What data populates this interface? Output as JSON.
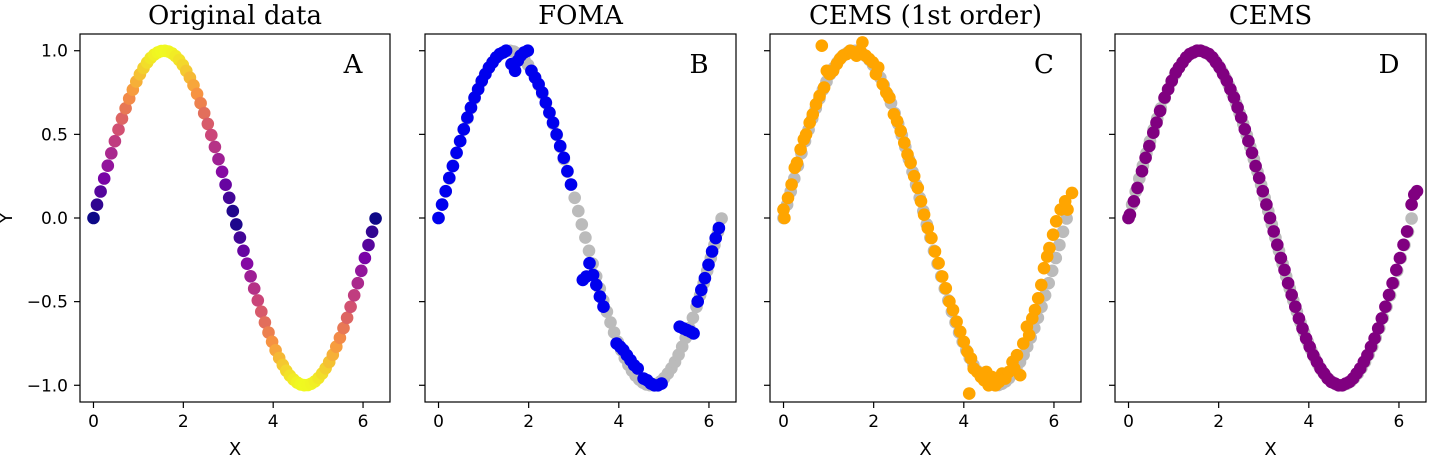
{
  "figure": {
    "panels": [
      {
        "title": "Original data",
        "letter": "A",
        "xlabel": "X",
        "ylabel": "Y",
        "show_y_tick_labels": true
      },
      {
        "title": "FOMA",
        "letter": "B",
        "xlabel": "X",
        "ylabel": "",
        "show_y_tick_labels": false
      },
      {
        "title": "CEMS (1st order)",
        "letter": "C",
        "xlabel": "X",
        "ylabel": "",
        "show_y_tick_labels": false
      },
      {
        "title": "CEMS",
        "letter": "D",
        "xlabel": "X",
        "ylabel": "",
        "show_y_tick_labels": false
      }
    ]
  },
  "chart_data": [
    {
      "type": "scatter",
      "title": "Original data",
      "annotation": "A",
      "xlabel": "X",
      "ylabel": "Y",
      "xlim": [
        -0.3,
        6.6
      ],
      "ylim": [
        -1.1,
        1.1
      ],
      "xticks": [
        0,
        2,
        4,
        6
      ],
      "yticks": [
        -1.0,
        -0.5,
        0.0,
        0.5,
        1.0
      ],
      "ytick_labels": [
        "−1.0",
        "−0.5",
        "0.0",
        "0.5",
        "1.0"
      ],
      "grid": false,
      "series": [
        {
          "color_map": "plasma (color by |y|)",
          "x_range": [
            0,
            6.28
          ],
          "n_points": 80,
          "function": "y = sin(x)"
        }
      ]
    },
    {
      "type": "scatter",
      "title": "FOMA",
      "annotation": "B",
      "xlabel": "X",
      "xlim": [
        -0.3,
        6.6
      ],
      "ylim": [
        -1.1,
        1.1
      ],
      "xticks": [
        0,
        2,
        4,
        6
      ],
      "grid": false,
      "series": [
        {
          "color": "#bbbbbb",
          "x_range": [
            0,
            6.28
          ],
          "n_points": 80,
          "function": "y = sin(x)"
        },
        {
          "color": "#0000ee",
          "points": [
            [
              0.0,
              0.0
            ],
            [
              0.08,
              0.08
            ],
            [
              0.16,
              0.16
            ],
            [
              0.24,
              0.24
            ],
            [
              0.32,
              0.31
            ],
            [
              0.4,
              0.39
            ],
            [
              0.48,
              0.46
            ],
            [
              0.56,
              0.53
            ],
            [
              0.64,
              0.6
            ],
            [
              0.72,
              0.66
            ],
            [
              0.8,
              0.72
            ],
            [
              0.88,
              0.77
            ],
            [
              0.96,
              0.82
            ],
            [
              1.04,
              0.86
            ],
            [
              1.12,
              0.9
            ],
            [
              1.2,
              0.93
            ],
            [
              1.28,
              0.96
            ],
            [
              1.36,
              0.98
            ],
            [
              1.44,
              0.99
            ],
            [
              1.5,
              1.0
            ],
            [
              1.62,
              0.92
            ],
            [
              1.7,
              0.88
            ],
            [
              1.76,
              0.94
            ],
            [
              1.82,
              0.97
            ],
            [
              1.9,
              0.99
            ],
            [
              1.98,
              1.0
            ],
            [
              2.06,
              0.88
            ],
            [
              2.14,
              0.84
            ],
            [
              2.22,
              0.8
            ],
            [
              2.3,
              0.75
            ],
            [
              2.38,
              0.69
            ],
            [
              2.46,
              0.63
            ],
            [
              2.54,
              0.57
            ],
            [
              2.62,
              0.5
            ],
            [
              2.7,
              0.43
            ],
            [
              2.78,
              0.36
            ],
            [
              2.86,
              0.28
            ],
            [
              2.94,
              0.2
            ],
            [
              3.35,
              -0.27
            ],
            [
              3.43,
              -0.34
            ],
            [
              3.5,
              -0.4
            ],
            [
              3.58,
              -0.47
            ],
            [
              3.66,
              -0.53
            ],
            [
              3.2,
              -0.37
            ],
            [
              3.28,
              -0.35
            ],
            [
              3.95,
              -0.75
            ],
            [
              4.03,
              -0.77
            ],
            [
              4.1,
              -0.79
            ],
            [
              4.18,
              -0.82
            ],
            [
              4.26,
              -0.85
            ],
            [
              4.34,
              -0.88
            ],
            [
              4.42,
              -0.9
            ],
            [
              4.55,
              -0.96
            ],
            [
              4.63,
              -0.97
            ],
            [
              4.71,
              -0.99
            ],
            [
              4.79,
              -1.0
            ],
            [
              4.87,
              -1.0
            ],
            [
              4.95,
              -0.99
            ],
            [
              5.35,
              -0.65
            ],
            [
              5.43,
              -0.66
            ],
            [
              5.51,
              -0.67
            ],
            [
              5.59,
              -0.68
            ],
            [
              5.66,
              -0.69
            ],
            [
              5.75,
              -0.5
            ],
            [
              5.83,
              -0.43
            ],
            [
              5.91,
              -0.36
            ],
            [
              5.99,
              -0.28
            ],
            [
              6.07,
              -0.2
            ],
            [
              6.15,
              -0.12
            ],
            [
              6.22,
              -0.06
            ]
          ]
        }
      ]
    },
    {
      "type": "scatter",
      "title": "CEMS (1st order)",
      "annotation": "C",
      "xlabel": "X",
      "xlim": [
        -0.3,
        6.6
      ],
      "ylim": [
        -1.1,
        1.1
      ],
      "xticks": [
        0,
        2,
        4,
        6
      ],
      "grid": false,
      "series": [
        {
          "color": "#bbbbbb",
          "x_range": [
            0,
            6.28
          ],
          "n_points": 80,
          "function": "y = sin(x)"
        },
        {
          "color": "#ffa500",
          "points": [
            [
              0.0,
              0.05
            ],
            [
              0.02,
              0.0
            ],
            [
              0.1,
              0.12
            ],
            [
              0.18,
              0.2
            ],
            [
              0.25,
              0.3
            ],
            [
              0.3,
              0.33
            ],
            [
              0.38,
              0.41
            ],
            [
              0.45,
              0.47
            ],
            [
              0.5,
              0.5
            ],
            [
              0.58,
              0.57
            ],
            [
              0.65,
              0.62
            ],
            [
              0.72,
              0.68
            ],
            [
              0.8,
              0.73
            ],
            [
              0.85,
              1.03
            ],
            [
              0.9,
              0.78
            ],
            [
              0.96,
              0.88
            ],
            [
              1.02,
              0.86
            ],
            [
              1.1,
              0.88
            ],
            [
              1.18,
              0.92
            ],
            [
              1.25,
              0.95
            ],
            [
              1.32,
              0.97
            ],
            [
              1.4,
              0.98
            ],
            [
              1.48,
              1.0
            ],
            [
              1.56,
              0.99
            ],
            [
              1.62,
              0.97
            ],
            [
              1.7,
              1.0
            ],
            [
              1.75,
              1.05
            ],
            [
              1.82,
              0.97
            ],
            [
              1.9,
              0.95
            ],
            [
              1.98,
              0.93
            ],
            [
              2.05,
              0.86
            ],
            [
              2.1,
              0.9
            ],
            [
              2.2,
              0.8
            ],
            [
              2.28,
              0.75
            ],
            [
              2.35,
              0.72
            ],
            [
              2.45,
              0.62
            ],
            [
              2.52,
              0.58
            ],
            [
              2.6,
              0.52
            ],
            [
              2.68,
              0.45
            ],
            [
              2.75,
              0.38
            ],
            [
              2.82,
              0.33
            ],
            [
              2.9,
              0.25
            ],
            [
              2.98,
              0.18
            ],
            [
              3.05,
              0.1
            ],
            [
              3.12,
              0.02
            ],
            [
              3.2,
              -0.06
            ],
            [
              3.28,
              -0.12
            ],
            [
              3.36,
              -0.2
            ],
            [
              3.44,
              -0.27
            ],
            [
              3.52,
              -0.35
            ],
            [
              3.6,
              -0.42
            ],
            [
              3.68,
              -0.5
            ],
            [
              3.76,
              -0.55
            ],
            [
              3.84,
              -0.62
            ],
            [
              3.92,
              -0.68
            ],
            [
              4.0,
              -0.74
            ],
            [
              4.08,
              -0.8
            ],
            [
              4.12,
              -1.05
            ],
            [
              4.16,
              -0.84
            ],
            [
              4.22,
              -0.9
            ],
            [
              4.3,
              -0.92
            ],
            [
              4.38,
              -0.95
            ],
            [
              4.45,
              -0.97
            ],
            [
              4.5,
              -0.92
            ],
            [
              4.55,
              -1.0
            ],
            [
              4.62,
              -0.95
            ],
            [
              4.7,
              -1.0
            ],
            [
              4.78,
              -0.98
            ],
            [
              4.85,
              -0.93
            ],
            [
              4.92,
              -0.96
            ],
            [
              5.0,
              -0.92
            ],
            [
              5.08,
              -0.86
            ],
            [
              5.12,
              -0.9
            ],
            [
              5.18,
              -0.82
            ],
            [
              5.25,
              -0.94
            ],
            [
              5.32,
              -0.75
            ],
            [
              5.4,
              -0.65
            ],
            [
              5.45,
              -0.7
            ],
            [
              5.52,
              -0.6
            ],
            [
              5.58,
              -0.55
            ],
            [
              5.65,
              -0.48
            ],
            [
              5.72,
              -0.4
            ],
            [
              5.78,
              -0.3
            ],
            [
              5.85,
              -0.23
            ],
            [
              5.9,
              -0.18
            ],
            [
              5.98,
              -0.1
            ],
            [
              6.05,
              -0.02
            ],
            [
              6.15,
              0.05
            ],
            [
              6.25,
              0.1
            ],
            [
              6.3,
              0.05
            ],
            [
              6.4,
              0.15
            ]
          ]
        }
      ]
    },
    {
      "type": "scatter",
      "title": "CEMS",
      "annotation": "D",
      "xlabel": "X",
      "xlim": [
        -0.3,
        6.6
      ],
      "ylim": [
        -1.1,
        1.1
      ],
      "xticks": [
        0,
        2,
        4,
        6
      ],
      "grid": false,
      "series": [
        {
          "color": "#bbbbbb",
          "x_range": [
            0,
            6.28
          ],
          "n_points": 80,
          "function": "y = sin(x)"
        },
        {
          "color": "#800080",
          "points": [
            [
              0.0,
              0.0
            ],
            [
              0.03,
              0.02
            ],
            [
              0.12,
              0.1
            ],
            [
              0.2,
              0.18
            ],
            [
              0.3,
              0.28
            ],
            [
              0.38,
              0.36
            ],
            [
              0.46,
              0.43
            ],
            [
              0.55,
              0.51
            ],
            [
              0.62,
              0.57
            ],
            [
              0.7,
              0.64
            ],
            [
              0.8,
              0.72
            ],
            [
              0.88,
              0.77
            ],
            [
              0.96,
              0.82
            ],
            [
              1.05,
              0.87
            ],
            [
              1.12,
              0.9
            ],
            [
              1.2,
              0.93
            ],
            [
              1.28,
              0.96
            ],
            [
              1.36,
              0.98
            ],
            [
              1.44,
              0.99
            ],
            [
              1.52,
              1.0
            ],
            [
              1.6,
              1.0
            ],
            [
              1.7,
              0.99
            ],
            [
              1.78,
              0.98
            ],
            [
              1.86,
              0.96
            ],
            [
              1.94,
              0.93
            ],
            [
              2.02,
              0.9
            ],
            [
              2.1,
              0.86
            ],
            [
              2.18,
              0.82
            ],
            [
              2.26,
              0.77
            ],
            [
              2.34,
              0.72
            ],
            [
              2.42,
              0.66
            ],
            [
              2.5,
              0.6
            ],
            [
              2.58,
              0.53
            ],
            [
              2.66,
              0.46
            ],
            [
              2.74,
              0.39
            ],
            [
              2.82,
              0.31
            ],
            [
              2.9,
              0.24
            ],
            [
              2.98,
              0.16
            ],
            [
              3.06,
              0.08
            ],
            [
              3.14,
              0.0
            ],
            [
              3.22,
              -0.08
            ],
            [
              3.3,
              -0.16
            ],
            [
              3.38,
              -0.24
            ],
            [
              3.46,
              -0.31
            ],
            [
              3.54,
              -0.39
            ],
            [
              3.62,
              -0.46
            ],
            [
              3.7,
              -0.53
            ],
            [
              3.78,
              -0.6
            ],
            [
              3.86,
              -0.66
            ],
            [
              3.94,
              -0.72
            ],
            [
              4.02,
              -0.77
            ],
            [
              4.1,
              -0.82
            ],
            [
              4.18,
              -0.86
            ],
            [
              4.26,
              -0.9
            ],
            [
              4.34,
              -0.93
            ],
            [
              4.42,
              -0.96
            ],
            [
              4.5,
              -0.98
            ],
            [
              4.58,
              -0.99
            ],
            [
              4.66,
              -1.0
            ],
            [
              4.74,
              -1.0
            ],
            [
              4.82,
              -0.99
            ],
            [
              4.9,
              -0.98
            ],
            [
              4.98,
              -0.96
            ],
            [
              5.06,
              -0.93
            ],
            [
              5.14,
              -0.9
            ],
            [
              5.22,
              -0.86
            ],
            [
              5.3,
              -0.82
            ],
            [
              5.38,
              -0.77
            ],
            [
              5.46,
              -0.72
            ],
            [
              5.54,
              -0.66
            ],
            [
              5.62,
              -0.6
            ],
            [
              5.7,
              -0.53
            ],
            [
              5.78,
              -0.46
            ],
            [
              5.86,
              -0.39
            ],
            [
              5.94,
              -0.31
            ],
            [
              6.02,
              -0.24
            ],
            [
              6.1,
              -0.16
            ],
            [
              6.18,
              -0.08
            ],
            [
              6.28,
              0.08
            ],
            [
              6.34,
              0.14
            ],
            [
              6.4,
              0.16
            ]
          ]
        }
      ]
    }
  ]
}
